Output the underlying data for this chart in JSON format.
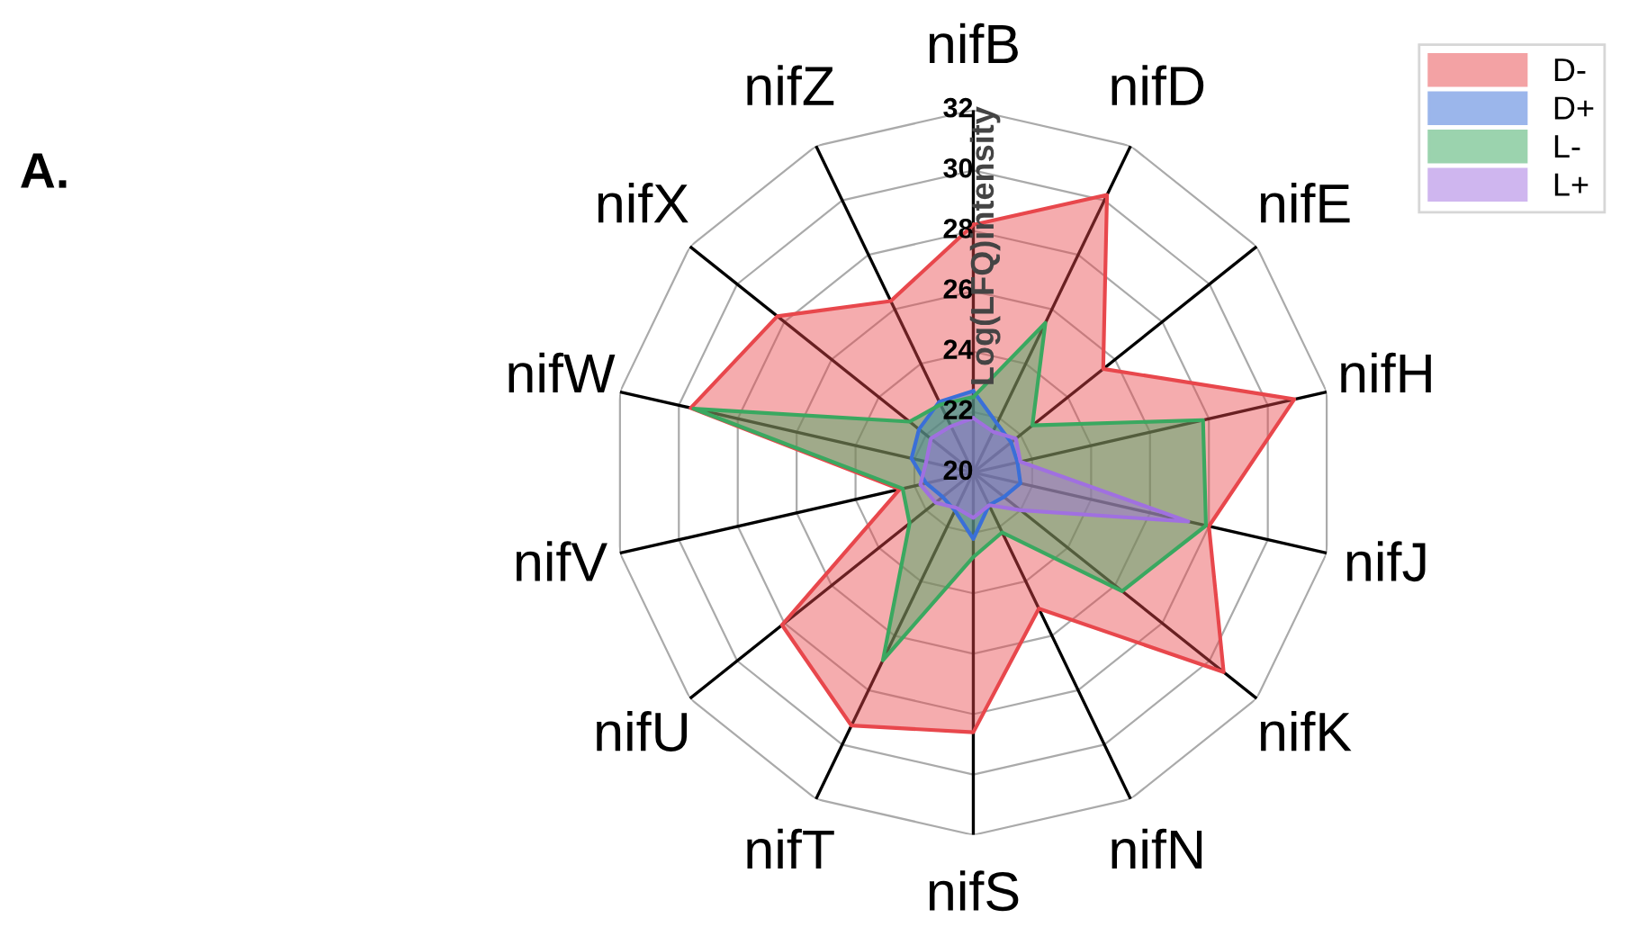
{
  "chart_data": {
    "type": "radar",
    "categories": [
      "nifB",
      "nifD",
      "nifE",
      "nifH",
      "nifJ",
      "nifK",
      "nifN",
      "nifS",
      "nifT",
      "nifU",
      "nifV",
      "nifW",
      "nifX",
      "nifZ"
    ],
    "ylabel": "Log(LFQ)intensity",
    "ylim": [
      20,
      32
    ],
    "yticks": [
      20,
      22,
      24,
      26,
      28,
      30,
      32
    ],
    "grid": true,
    "legend": "top right",
    "annotations": [
      "A."
    ],
    "series": [
      {
        "name": "D-",
        "color": "#e8474c",
        "values": [
          28.2,
          30.2,
          25.5,
          30.9,
          28.0,
          30.6,
          25.0,
          28.6,
          29.3,
          28.1,
          22.5,
          29.6,
          28.3,
          26.3
        ]
      },
      {
        "name": "D+",
        "color": "#3a6fd8",
        "values": [
          22.7,
          21.8,
          21.6,
          21.5,
          21.6,
          21.3,
          21.2,
          22.2,
          21.4,
          21.3,
          21.6,
          22.1,
          22.3,
          22.6
        ]
      },
      {
        "name": "L-",
        "color": "#3aa860",
        "values": [
          22.5,
          25.5,
          22.5,
          27.8,
          27.9,
          26.3,
          22.2,
          22.8,
          26.9,
          22.7,
          22.4,
          29.5,
          22.7,
          22.5
        ]
      },
      {
        "name": "L+",
        "color": "#a070e0",
        "values": [
          21.8,
          21.5,
          21.8,
          21.6,
          27.3,
          22.0,
          21.2,
          21.5,
          21.3,
          21.6,
          21.8,
          21.6,
          21.8,
          21.7
        ]
      }
    ]
  }
}
